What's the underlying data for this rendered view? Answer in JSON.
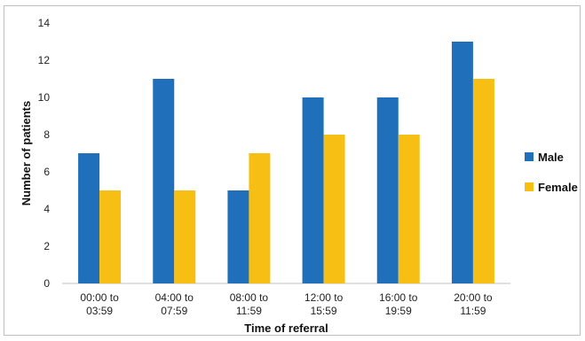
{
  "chart_data": {
    "type": "bar",
    "categories": [
      [
        "00:00 to",
        "03:59"
      ],
      [
        "04:00 to",
        "07:59"
      ],
      [
        "08:00 to",
        "11:59"
      ],
      [
        "12:00 to",
        "15:59"
      ],
      [
        "16:00 to",
        "19:59"
      ],
      [
        "20:00 to",
        "11:59"
      ]
    ],
    "series": [
      {
        "name": "Male",
        "values": [
          7,
          11,
          5,
          10,
          10,
          13
        ],
        "color": "#1f6fba"
      },
      {
        "name": "Female",
        "values": [
          5,
          5,
          7,
          8,
          8,
          11
        ],
        "color": "#f7bf14"
      }
    ],
    "xlabel": "Time of referral",
    "ylabel": "Number of patients",
    "ylim": [
      0,
      14
    ],
    "yticks": [
      0,
      2,
      4,
      6,
      8,
      10,
      12,
      14
    ],
    "grid": false,
    "legend": "right"
  }
}
